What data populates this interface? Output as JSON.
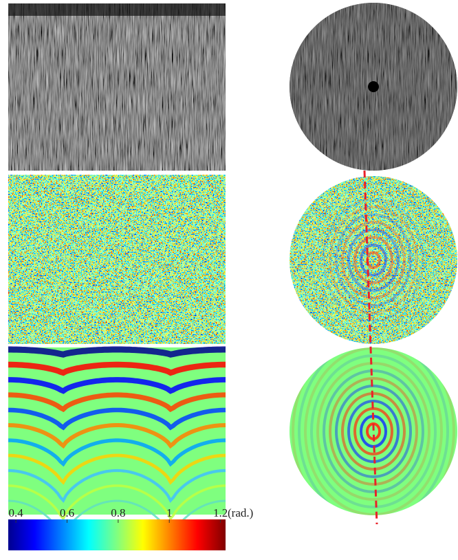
{
  "colorbar": {
    "range": [
      0.37,
      1.22
    ],
    "ticks": [
      0.4,
      0.6,
      0.8,
      1,
      1.2
    ],
    "unit": "(rad.)"
  }
}
